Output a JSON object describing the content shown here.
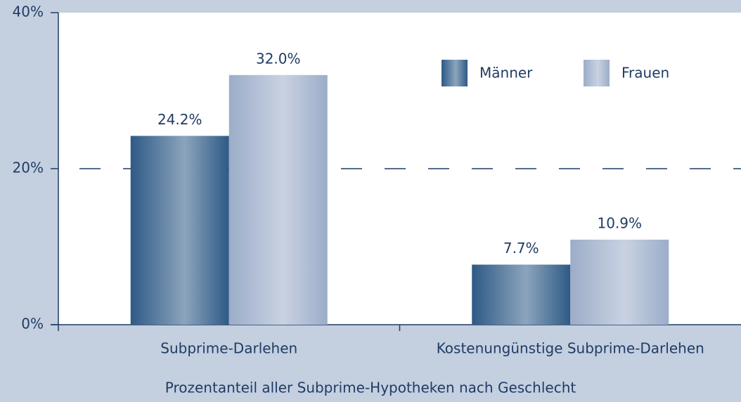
{
  "chart_data": {
    "type": "bar",
    "x_label": "Prozentanteil aller Subprime-Hypotheken nach Geschlecht",
    "categories": [
      "Subprime-Darlehen",
      "Kostenungünstige Subprime-Darlehen"
    ],
    "series": [
      {
        "name": "Männer",
        "color": "#2e5a86",
        "values": [
          24.2,
          7.7
        ],
        "value_labels": [
          "24.2%",
          "7.7%"
        ]
      },
      {
        "name": "Frauen",
        "color": "#9cadc9",
        "values": [
          32.0,
          10.9
        ],
        "value_labels": [
          "32.0%",
          "10.9%"
        ]
      }
    ],
    "ylim": [
      0,
      40
    ],
    "yticks": [
      {
        "value": 0,
        "label": "0%"
      },
      {
        "value": 20,
        "label": "20%"
      },
      {
        "value": 40,
        "label": "40%"
      }
    ],
    "grid": true,
    "legend": "upper right"
  }
}
